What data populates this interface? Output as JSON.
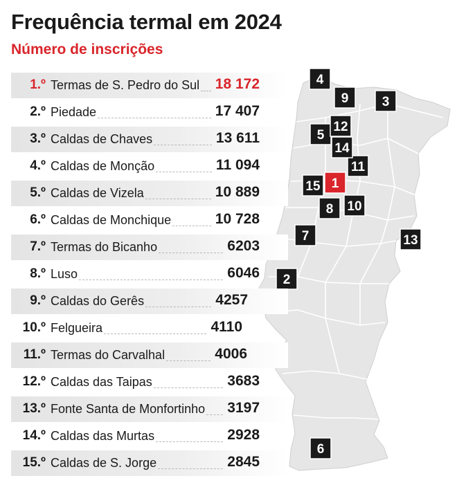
{
  "chart_data": {
    "type": "table",
    "title": "Frequência termal em 2024",
    "subtitle": "Número de inscrições",
    "colors": {
      "accent": "#d9252b",
      "marker": "#1a1a1a",
      "map_fill": "#e6e6e6",
      "map_border": "#ffffff"
    },
    "rows": [
      {
        "rank": "1.º",
        "name": "Termas de S. Pedro do Sul",
        "value_label": "18 172",
        "value": 18172,
        "marker": "1"
      },
      {
        "rank": "2.º",
        "name": "Piedade",
        "value_label": "17 407",
        "value": 17407,
        "marker": "2"
      },
      {
        "rank": "3.º",
        "name": "Caldas de Chaves",
        "value_label": "13 611",
        "value": 13611,
        "marker": "3"
      },
      {
        "rank": "4.º",
        "name": "Caldas de Monção",
        "value_label": "11 094",
        "value": 11094,
        "marker": "4"
      },
      {
        "rank": "5.º",
        "name": "Caldas de Vizela",
        "value_label": "10 889",
        "value": 10889,
        "marker": "5"
      },
      {
        "rank": "6.º",
        "name": "Caldas de Monchique",
        "value_label": "10 728",
        "value": 10728,
        "marker": "6"
      },
      {
        "rank": "7.º",
        "name": "Termas do Bicanho",
        "value_label": "6203",
        "value": 6203,
        "marker": "7"
      },
      {
        "rank": "8.º",
        "name": "Luso",
        "value_label": "6046",
        "value": 6046,
        "marker": "8"
      },
      {
        "rank": "9.º",
        "name": "Caldas do Gerês",
        "value_label": "4257",
        "value": 4257,
        "marker": "9"
      },
      {
        "rank": "10.º",
        "name": "Felgueira",
        "value_label": "4110",
        "value": 4110,
        "marker": "10"
      },
      {
        "rank": "11.º",
        "name": "Termas do Carvalhal",
        "value_label": "4006",
        "value": 4006,
        "marker": "11"
      },
      {
        "rank": "12.º",
        "name": "Caldas das Taipas",
        "value_label": "3683",
        "value": 3683,
        "marker": "12"
      },
      {
        "rank": "13.º",
        "name": "Fonte Santa de Monfortinho",
        "value_label": "3197",
        "value": 3197,
        "marker": "13"
      },
      {
        "rank": "14.º",
        "name": "Caldas das Murtas",
        "value_label": "2928",
        "value": 2928,
        "marker": "14"
      },
      {
        "rank": "15.º",
        "name": "Caldas de S. Jorge",
        "value_label": "2845",
        "value": 2845,
        "marker": "15"
      }
    ]
  }
}
